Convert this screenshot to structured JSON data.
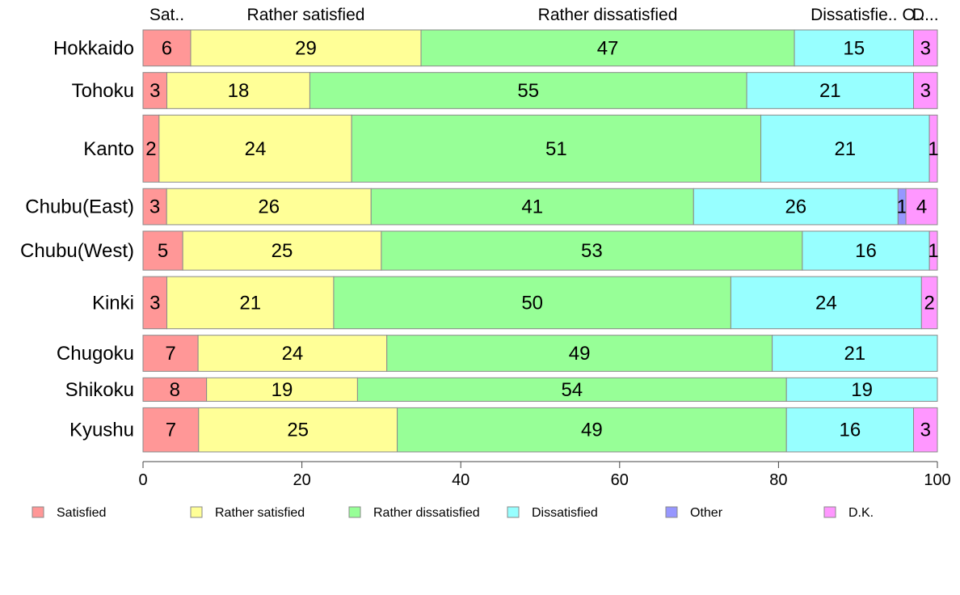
{
  "chart_data": {
    "type": "bar",
    "orientation": "horizontal",
    "stacked": "percent",
    "categories": [
      "Hokkaido",
      "Tohoku",
      "Kanto",
      "Chubu(East)",
      "Chubu(West)",
      "Kinki",
      "Chugoku",
      "Shikoku",
      "Kyushu"
    ],
    "relative_widths": [
      0.063,
      0.063,
      0.117,
      0.063,
      0.068,
      0.091,
      0.063,
      0.041,
      0.077
    ],
    "series": [
      {
        "name": "Satisfied",
        "short_label": "Sat..",
        "color": "#ff9797",
        "values": [
          6,
          3,
          2,
          3,
          5,
          3,
          7,
          8,
          7
        ]
      },
      {
        "name": "Rather satisfied",
        "short_label": "Rather satisfied",
        "color": "#ffff97",
        "values": [
          29,
          18,
          24,
          26,
          25,
          21,
          24,
          19,
          25
        ]
      },
      {
        "name": "Rather dissatisfied",
        "short_label": "Rather dissatisfied",
        "color": "#97ff97",
        "values": [
          47,
          55,
          51,
          41,
          53,
          50,
          49,
          54,
          49
        ]
      },
      {
        "name": "Dissatisfied",
        "short_label": "Dissatisfie..",
        "color": "#97ffff",
        "values": [
          15,
          21,
          21,
          26,
          16,
          24,
          21,
          19,
          16
        ]
      },
      {
        "name": "Other",
        "short_label": "O..",
        "color": "#9797ff",
        "values": [
          0,
          0,
          0,
          1,
          0,
          0,
          0,
          0,
          0
        ]
      },
      {
        "name": "D.K.",
        "short_label": "D...",
        "color": "#ff97ff",
        "values": [
          3,
          3,
          1,
          4,
          1,
          2,
          0,
          0,
          3
        ]
      }
    ],
    "xlim": [
      0,
      100
    ],
    "xticks": [
      0,
      20,
      40,
      60,
      80,
      100
    ],
    "title": "",
    "xlabel": "",
    "ylabel": "",
    "legend_position": "bottom",
    "grid": false
  }
}
